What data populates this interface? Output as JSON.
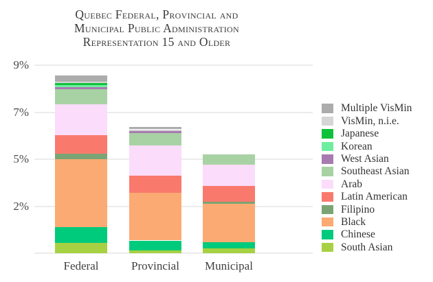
{
  "title": {
    "line1": "Quebec Federal, Provincial and",
    "line2": "Municipal Public Administration",
    "line3": "Representation 15 and Older"
  },
  "chart_data": {
    "type": "bar",
    "stacked": true,
    "title": "Quebec Federal, Provincial and Municipal Public Administration Representation 15 and Older",
    "categories": [
      "Federal",
      "Provincial",
      "Municipal"
    ],
    "series": [
      {
        "name": "South Asian",
        "color": "#a7d143",
        "values": [
          0.44,
          0.12,
          0.19
        ]
      },
      {
        "name": "Chinese",
        "color": "#00ca7b",
        "values": [
          0.66,
          0.42,
          0.29
        ]
      },
      {
        "name": "Black",
        "color": "#fbaa73",
        "values": [
          3.9,
          2.33,
          1.67
        ]
      },
      {
        "name": "Filipino",
        "color": "#7ba475",
        "values": [
          0.23,
          0.0,
          0.14
        ]
      },
      {
        "name": "Latin American",
        "color": "#fa796d",
        "values": [
          0.79,
          1.1,
          1.02
        ]
      },
      {
        "name": "Arab",
        "color": "#fbdcfb",
        "values": [
          1.32,
          1.6,
          1.36
        ]
      },
      {
        "name": "Southeast Asian",
        "color": "#a8d2a4",
        "values": [
          0.64,
          0.53,
          0.52
        ]
      },
      {
        "name": "West Asian",
        "color": "#a77bb0",
        "values": [
          0.09,
          0.11,
          0.0
        ]
      },
      {
        "name": "Korean",
        "color": "#6fee9f",
        "values": [
          0.09,
          0.0,
          0.0
        ]
      },
      {
        "name": "Japanese",
        "color": "#10c13a",
        "values": [
          0.09,
          0.0,
          0.0
        ]
      },
      {
        "name": "VisMin, n.i.e.",
        "color": "#d6d6d6",
        "values": [
          0.06,
          0.06,
          0.0
        ]
      },
      {
        "name": "Multiple VisMin",
        "color": "#acacac",
        "values": [
          0.26,
          0.09,
          0.0
        ]
      }
    ],
    "totals": [
      8.57,
      6.35,
      5.19
    ],
    "y_axis": {
      "tick_values": [
        0,
        2,
        5,
        7,
        9
      ],
      "tick_labels": [
        "",
        "2%",
        "5%",
        "7%",
        "9%"
      ],
      "unit": "%",
      "ticks_equally_spaced": true,
      "grid": true
    },
    "legend": {
      "position": "right",
      "order_top_to_bottom": [
        "Multiple VisMin",
        "VisMin, n.i.e.",
        "Japanese",
        "Korean",
        "West Asian",
        "Southeast Asian",
        "Arab",
        "Latin American",
        "Filipino",
        "Black",
        "Chinese",
        "South Asian"
      ]
    }
  }
}
